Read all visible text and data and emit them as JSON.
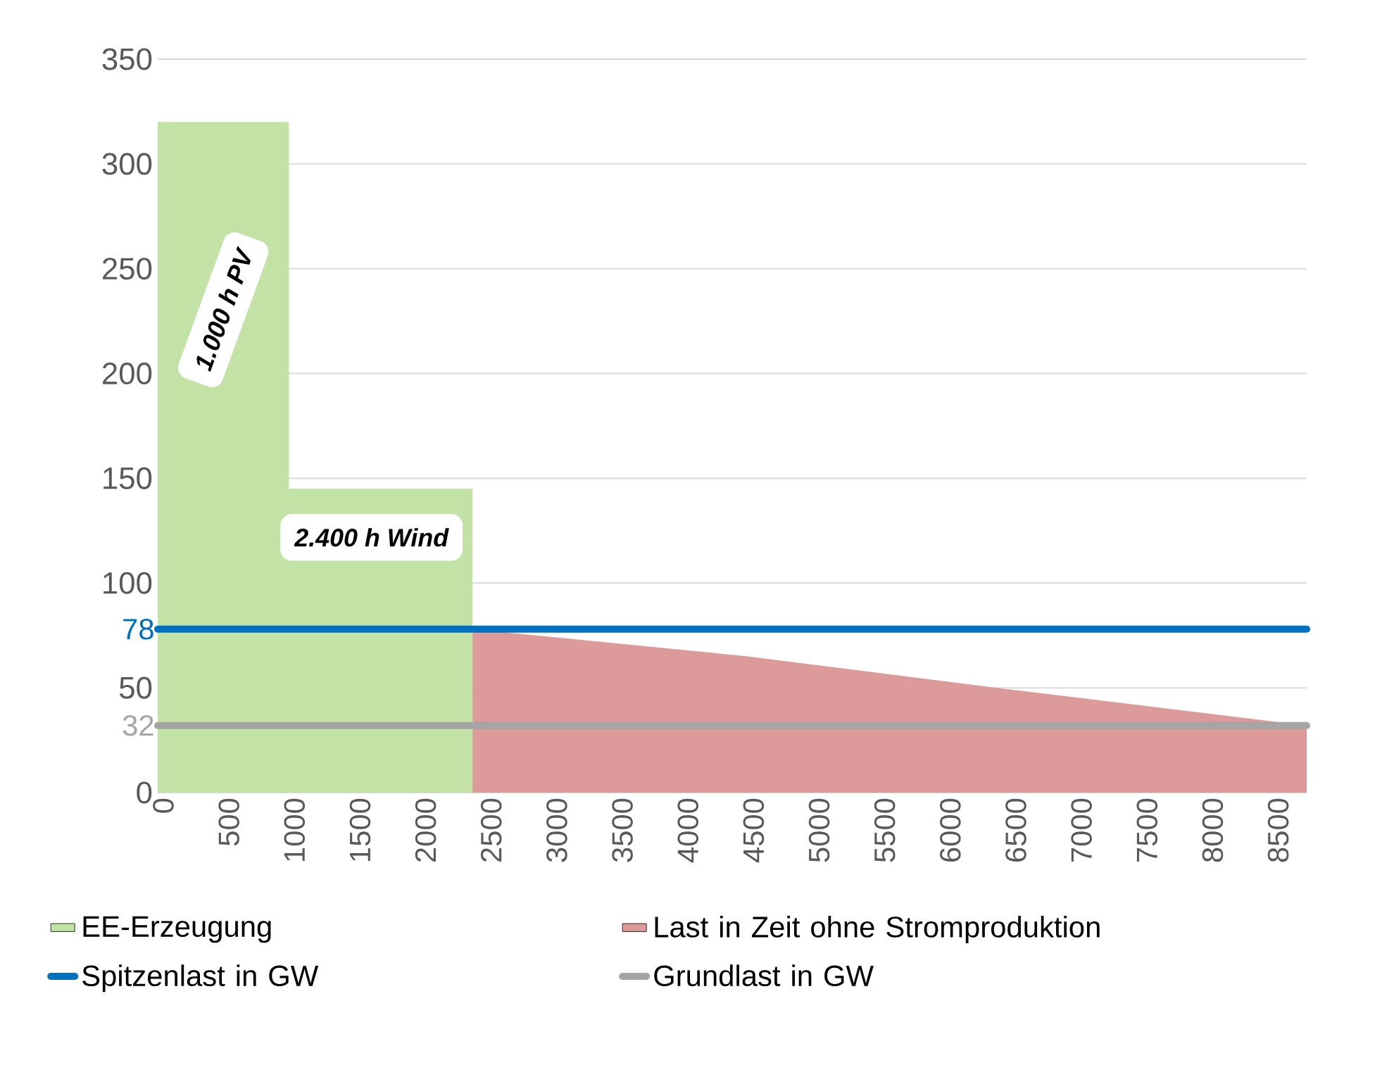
{
  "chart_data": {
    "type": "area",
    "xlim": [
      0,
      8760
    ],
    "xticks": [
      0,
      500,
      1000,
      1500,
      2000,
      2500,
      3000,
      3500,
      4000,
      4500,
      5000,
      5500,
      6000,
      6500,
      7000,
      7500,
      8000,
      8500
    ],
    "ylim": [
      0,
      350
    ],
    "yticks": [
      0,
      50,
      100,
      150,
      200,
      250,
      300,
      350
    ],
    "grid": "y",
    "legend": "bottom",
    "series": [
      {
        "name": "EE-Erzeugung",
        "color": "#c3e2a6",
        "x": [
          0,
          1000,
          1000,
          2400
        ],
        "values": [
          320,
          320,
          145,
          145
        ]
      },
      {
        "name": "Last in Zeit ohne Stromproduktion",
        "color": "#dc9a9a",
        "x": [
          2400,
          4500,
          6400,
          8760
        ],
        "values": [
          78,
          65,
          50,
          32
        ]
      },
      {
        "name": "Spitzenlast in GW",
        "type": "line",
        "color": "#0070c0",
        "x": [
          0,
          8760
        ],
        "values": [
          78,
          78
        ]
      },
      {
        "name": "Grundlast in GW",
        "type": "line",
        "color": "#a5a5a5",
        "x": [
          0,
          8760
        ],
        "values": [
          32,
          32
        ]
      }
    ],
    "annotations": [
      "1.000 h PV",
      "2.400 h Wind",
      {
        "text": "78",
        "x": 0,
        "y": 78
      },
      {
        "text": "32",
        "x": 0,
        "y": 32
      }
    ]
  }
}
